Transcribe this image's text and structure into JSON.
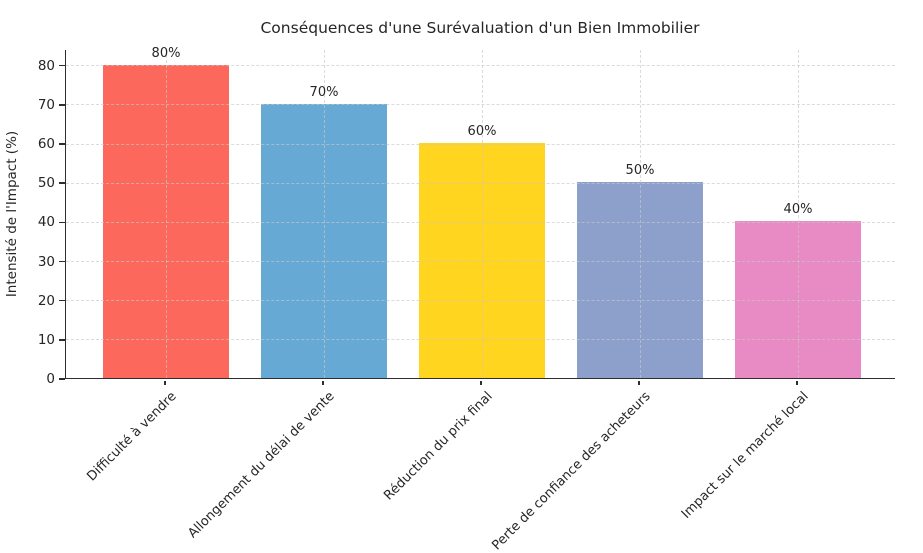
{
  "chart_data": {
    "type": "bar",
    "title": "Conséquences d'une Surévaluation d'un Bien Immobilier",
    "xlabel": "",
    "ylabel": "Intensité de l'Impact (%)",
    "categories": [
      "Difficulté à vendre",
      "Allongement du délai de vente",
      "Réduction du prix final",
      "Perte de confiance des acheteurs",
      "Impact sur le marché local"
    ],
    "values": [
      80,
      70,
      60,
      50,
      40
    ],
    "value_labels": [
      "80%",
      "70%",
      "60%",
      "50%",
      "40%"
    ],
    "bar_colors": [
      "#FC685C",
      "#66A9D4",
      "#FFD520",
      "#8DA0CB",
      "#E88BC4"
    ],
    "yticks": [
      0,
      10,
      20,
      30,
      40,
      50,
      60,
      70,
      80
    ],
    "ylim": [
      0,
      84
    ],
    "grid": "dashed-both-axes-drawn-over-bars",
    "legend": "none",
    "background_color": "#ffffff",
    "spine_color": "#2e2e2e"
  }
}
